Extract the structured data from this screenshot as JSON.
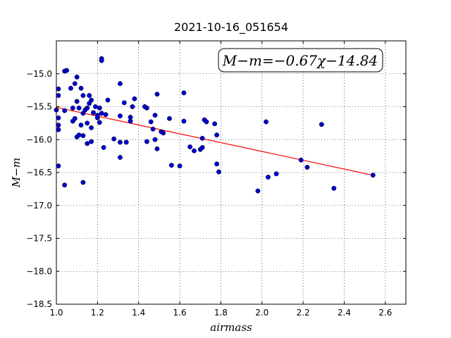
{
  "chart_data": {
    "type": "scatter",
    "title": "2021-10-16_051654",
    "xlabel": "airmass",
    "ylabel": "M−m",
    "xlim": [
      1.0,
      2.7
    ],
    "ylim": [
      -18.5,
      -14.5
    ],
    "y_inverted": true,
    "x_ticks": [
      "1.0",
      "1.2",
      "1.4",
      "1.6",
      "1.8",
      "2.0",
      "2.2",
      "2.4",
      "2.6"
    ],
    "y_ticks": [
      "−15.0",
      "−15.5",
      "−16.0",
      "−16.5",
      "−17.0",
      "−17.5",
      "−18.0",
      "−18.5"
    ],
    "grid": true,
    "annotation": "M−m=−0.67χ−14.84",
    "fit": {
      "slope": -0.67,
      "intercept": -14.84,
      "x_range": [
        1.0,
        2.54
      ],
      "color": "#ff0000"
    },
    "marker_color": "#0000cc",
    "points": [
      [
        1.0,
        -15.55
      ],
      [
        1.01,
        -15.23
      ],
      [
        1.01,
        -15.33
      ],
      [
        1.01,
        -15.67
      ],
      [
        1.01,
        -15.78
      ],
      [
        1.01,
        -15.85
      ],
      [
        1.01,
        -16.4
      ],
      [
        1.04,
        -14.96
      ],
      [
        1.05,
        -14.95
      ],
      [
        1.04,
        -15.56
      ],
      [
        1.04,
        -16.69
      ],
      [
        1.07,
        -15.22
      ],
      [
        1.08,
        -15.52
      ],
      [
        1.08,
        -15.72
      ],
      [
        1.09,
        -15.68
      ],
      [
        1.09,
        -15.15
      ],
      [
        1.1,
        -15.05
      ],
      [
        1.1,
        -15.42
      ],
      [
        1.1,
        -15.96
      ],
      [
        1.11,
        -15.52
      ],
      [
        1.11,
        -15.93
      ],
      [
        1.12,
        -15.22
      ],
      [
        1.12,
        -15.78
      ],
      [
        1.13,
        -15.94
      ],
      [
        1.13,
        -15.33
      ],
      [
        1.13,
        -15.6
      ],
      [
        1.13,
        -16.65
      ],
      [
        1.14,
        -15.55
      ],
      [
        1.15,
        -15.52
      ],
      [
        1.15,
        -15.75
      ],
      [
        1.15,
        -16.06
      ],
      [
        1.16,
        -15.33
      ],
      [
        1.16,
        -15.45
      ],
      [
        1.17,
        -15.4
      ],
      [
        1.17,
        -15.82
      ],
      [
        1.17,
        -16.03
      ],
      [
        1.18,
        -15.59
      ],
      [
        1.19,
        -15.5
      ],
      [
        1.2,
        -15.63
      ],
      [
        1.2,
        -15.67
      ],
      [
        1.21,
        -15.52
      ],
      [
        1.21,
        -15.74
      ],
      [
        1.22,
        -14.77
      ],
      [
        1.22,
        -14.8
      ],
      [
        1.22,
        -15.6
      ],
      [
        1.23,
        -16.12
      ],
      [
        1.24,
        -15.62
      ],
      [
        1.25,
        -15.4
      ],
      [
        1.28,
        -15.99
      ],
      [
        1.31,
        -15.15
      ],
      [
        1.31,
        -15.64
      ],
      [
        1.31,
        -16.04
      ],
      [
        1.31,
        -16.27
      ],
      [
        1.33,
        -15.44
      ],
      [
        1.34,
        -16.04
      ],
      [
        1.36,
        -15.66
      ],
      [
        1.36,
        -15.72
      ],
      [
        1.37,
        -15.5
      ],
      [
        1.38,
        -15.38
      ],
      [
        1.43,
        -15.5
      ],
      [
        1.44,
        -15.52
      ],
      [
        1.44,
        -16.03
      ],
      [
        1.46,
        -15.73
      ],
      [
        1.47,
        -15.84
      ],
      [
        1.48,
        -15.63
      ],
      [
        1.48,
        -16.0
      ],
      [
        1.49,
        -16.14
      ],
      [
        1.49,
        -15.31
      ],
      [
        1.51,
        -15.88
      ],
      [
        1.52,
        -15.9
      ],
      [
        1.55,
        -15.68
      ],
      [
        1.56,
        -16.39
      ],
      [
        1.6,
        -16.4
      ],
      [
        1.62,
        -15.29
      ],
      [
        1.62,
        -15.72
      ],
      [
        1.65,
        -16.11
      ],
      [
        1.67,
        -16.17
      ],
      [
        1.7,
        -16.15
      ],
      [
        1.71,
        -15.98
      ],
      [
        1.71,
        -16.12
      ],
      [
        1.72,
        -15.7
      ],
      [
        1.73,
        -15.73
      ],
      [
        1.77,
        -15.76
      ],
      [
        1.78,
        -15.93
      ],
      [
        1.78,
        -16.37
      ],
      [
        1.79,
        -16.49
      ],
      [
        1.98,
        -16.78
      ],
      [
        2.02,
        -15.73
      ],
      [
        2.03,
        -16.57
      ],
      [
        2.07,
        -16.52
      ],
      [
        2.19,
        -16.31
      ],
      [
        2.22,
        -16.42
      ],
      [
        2.29,
        -15.77
      ],
      [
        2.35,
        -16.74
      ],
      [
        2.54,
        -16.54
      ]
    ]
  }
}
